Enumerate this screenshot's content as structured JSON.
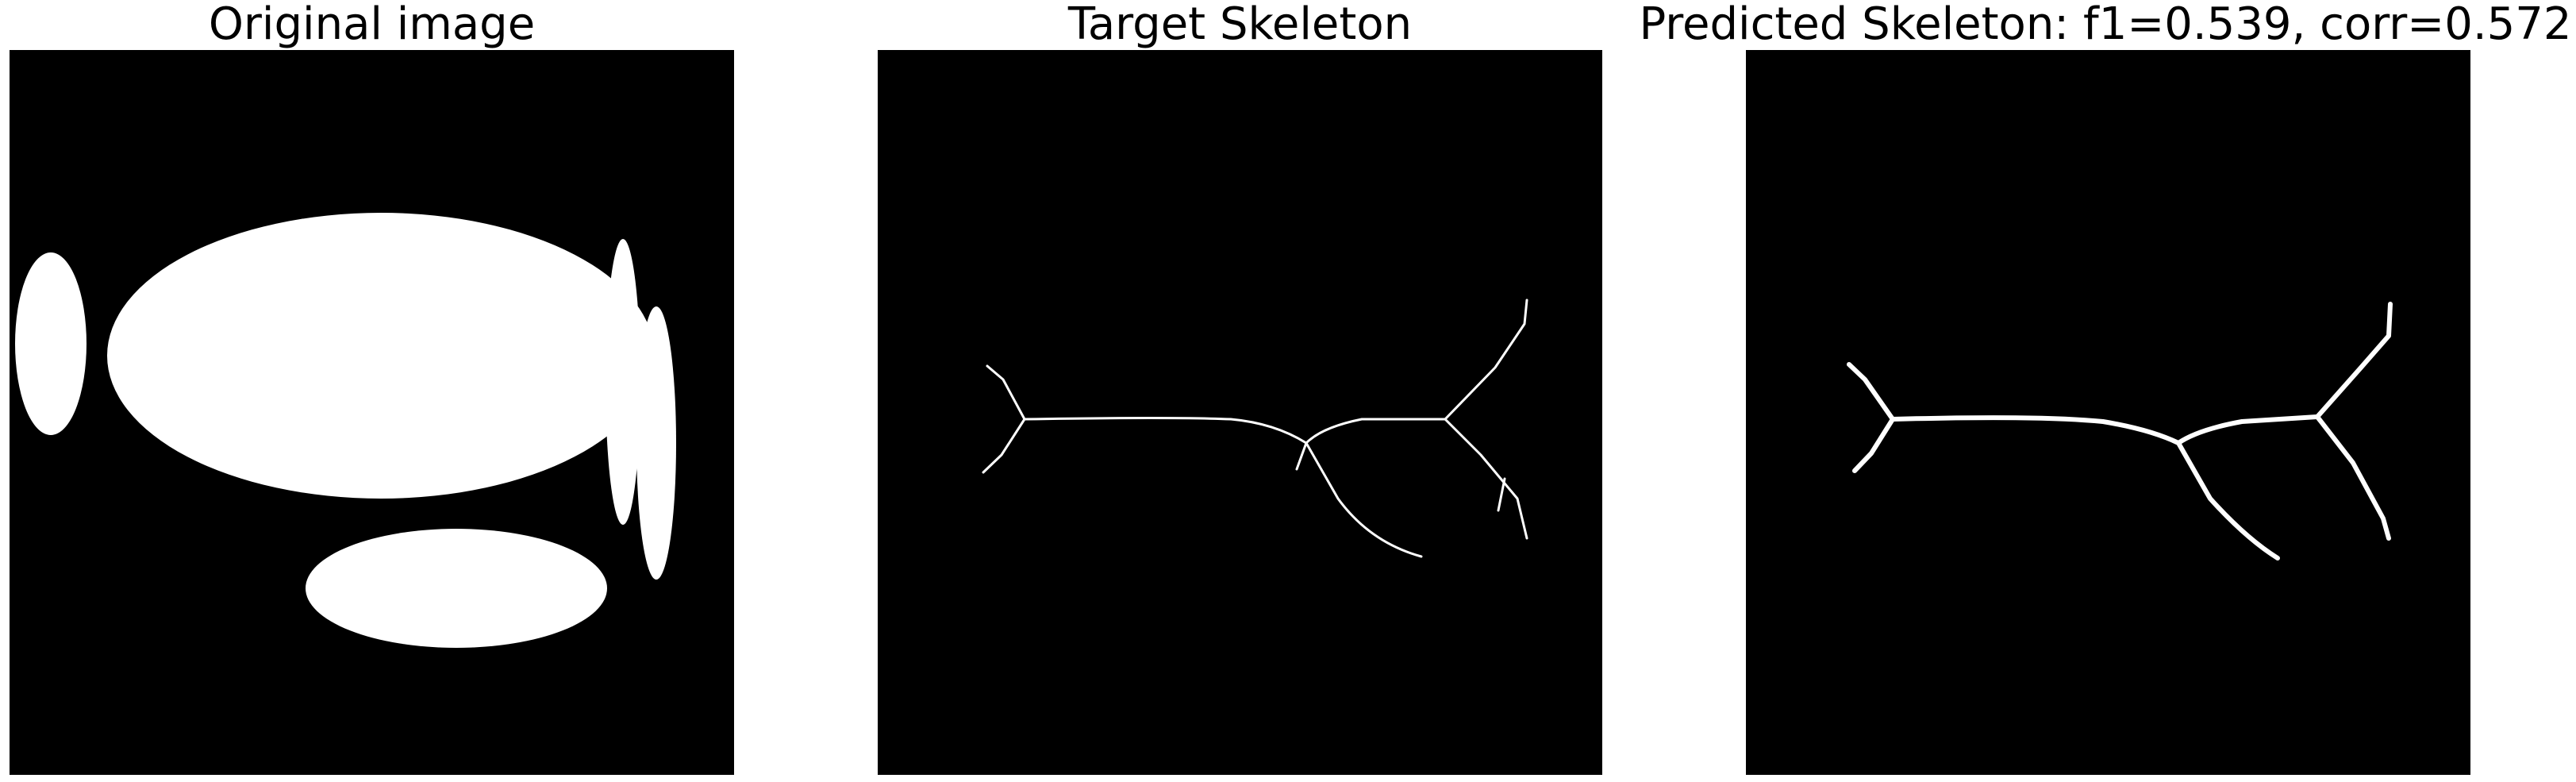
{
  "panels": [
    {
      "title": "Original image"
    },
    {
      "title": "Target Skeleton"
    },
    {
      "title": "Predicted Skeleton: f1=0.539, corr=0.572"
    }
  ],
  "colors": {
    "background": "#000000",
    "foreground": "#ffffff"
  }
}
